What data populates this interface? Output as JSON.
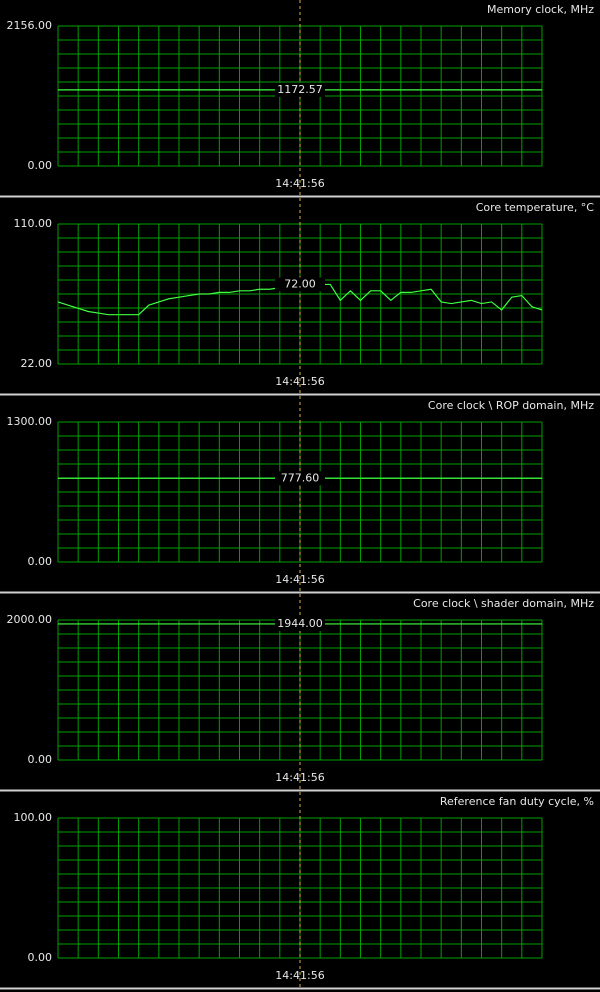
{
  "chart_data": [
    {
      "type": "line",
      "title": "Memory clock, MHz",
      "ylim": [
        0,
        2156
      ],
      "yticks": [
        {
          "value": 0,
          "label": "0.00"
        },
        {
          "value": 2156,
          "label": "2156.00"
        }
      ],
      "values": [
        1172.57,
        1172.57
      ],
      "color": "#40ff40",
      "cursor": {
        "value": 1172.57,
        "label": "1172.57"
      },
      "time_label": "14:41:56"
    },
    {
      "type": "line",
      "title": "Core temperature, °C",
      "ylim": [
        22,
        110
      ],
      "yticks": [
        {
          "value": 22,
          "label": "22.00"
        },
        {
          "value": 110,
          "label": "110.00"
        }
      ],
      "values": [
        61,
        59,
        57,
        55,
        54,
        53,
        53,
        53,
        53,
        59,
        61,
        63,
        64,
        65,
        66,
        66,
        67,
        67,
        68,
        68,
        69,
        69,
        70,
        71,
        72,
        72,
        72,
        72,
        62,
        68,
        62,
        68,
        68,
        62,
        67,
        67,
        68,
        69,
        61,
        60,
        61,
        62,
        60,
        61,
        56,
        64,
        65,
        58,
        56
      ],
      "color": "#40ff40",
      "cursor": {
        "value": 72,
        "label": "72.00"
      },
      "time_label": "14:41:56"
    },
    {
      "type": "line",
      "title": "Core clock \\ ROP domain, MHz",
      "ylim": [
        0,
        1300
      ],
      "yticks": [
        {
          "value": 0,
          "label": "0.00"
        },
        {
          "value": 1300,
          "label": "1300.00"
        }
      ],
      "values": [
        777.6,
        777.6
      ],
      "color": "#40ff40",
      "cursor": {
        "value": 777.6,
        "label": "777.60"
      },
      "time_label": "14:41:56"
    },
    {
      "type": "line",
      "title": "Core clock \\ shader domain, MHz",
      "ylim": [
        0,
        2000
      ],
      "yticks": [
        {
          "value": 0,
          "label": "0.00"
        },
        {
          "value": 2000,
          "label": "2000.00"
        }
      ],
      "values": [
        1944,
        1944
      ],
      "color": "#40ff40",
      "cursor": {
        "value": 1944,
        "label": "1944.00"
      },
      "time_label": "14:41:56"
    },
    {
      "type": "line",
      "title": "Reference fan duty cycle, %",
      "ylim": [
        0,
        100
      ],
      "yticks": [
        {
          "value": 0,
          "label": "0.00"
        },
        {
          "value": 100,
          "label": "100.00"
        }
      ],
      "color": "#40ff40",
      "time_label": "14:41:56"
    }
  ]
}
